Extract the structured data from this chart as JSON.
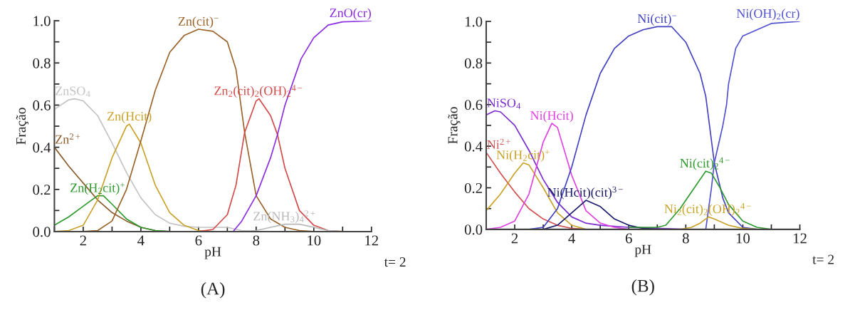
{
  "chart_data": [
    {
      "type": "line",
      "xlabel": "pH",
      "ylabel": "Fração",
      "xlim": [
        1,
        12
      ],
      "ylim": [
        0,
        1.0
      ],
      "xticks": [
        {
          "value": 1,
          "label": null
        },
        2,
        {
          "value": 3,
          "label": null
        },
        4,
        {
          "value": 5,
          "label": null
        },
        6,
        {
          "value": 7,
          "label": null
        },
        8,
        {
          "value": 9,
          "label": null
        },
        10,
        {
          "value": 11,
          "label": null
        },
        12
      ],
      "yticks": [
        {
          "value": 0,
          "label": "0.0"
        },
        {
          "value": 0.1,
          "label": null
        },
        0.2,
        {
          "value": 0.3,
          "label": null
        },
        0.4,
        {
          "value": 0.5,
          "label": null
        },
        0.6,
        {
          "value": 0.7,
          "label": null
        },
        0.8,
        {
          "value": 0.9,
          "label": null
        },
        {
          "value": 1.0,
          "label": "1.0"
        }
      ],
      "grid": false,
      "legend": false,
      "marker": "none",
      "line_style": "solid",
      "annotations": [
        "t= 2",
        "(A)"
      ],
      "series": [
        {
          "name": "ZnSO$_{4}$",
          "color": "#c4c4c4",
          "x": [
            1,
            1.5,
            1.7,
            2,
            2.5,
            3,
            3.5,
            4,
            4.5,
            5,
            5.5,
            6,
            7,
            7.5,
            8
          ],
          "values": [
            0.58,
            0.625,
            0.63,
            0.62,
            0.55,
            0.42,
            0.28,
            0.16,
            0.08,
            0.04,
            0.025,
            0.02,
            0.02,
            0.005,
            0
          ]
        },
        {
          "name": "Zn$^{2+}$",
          "color": "#8b5a2b",
          "x": [
            1,
            1.5,
            2,
            2.5,
            3,
            3.5,
            4,
            4.5,
            5
          ],
          "values": [
            0.4,
            0.31,
            0.23,
            0.15,
            0.09,
            0.05,
            0.02,
            0.005,
            0
          ]
        },
        {
          "name": "Zn(H$_{2}$cit)$^{+}$",
          "color": "#2e9a2e",
          "x": [
            1,
            1.5,
            2,
            2.5,
            2.7,
            3,
            3.5,
            4,
            4.5,
            5
          ],
          "values": [
            0.03,
            0.07,
            0.12,
            0.17,
            0.17,
            0.13,
            0.06,
            0.02,
            0.005,
            0
          ]
        },
        {
          "name": "Zn(Hcit)",
          "color": "#c9a227",
          "x": [
            1,
            1.5,
            2,
            2.5,
            3,
            3.5,
            3.6,
            4,
            4.5,
            5,
            5.5,
            6,
            6.5
          ],
          "values": [
            0,
            0.005,
            0.03,
            0.15,
            0.35,
            0.5,
            0.51,
            0.42,
            0.22,
            0.09,
            0.03,
            0.005,
            0
          ]
        },
        {
          "name": "Zn(cit)$^{−}$",
          "color": "#9a6228",
          "x": [
            1,
            2,
            2.5,
            3,
            3.5,
            4,
            4.5,
            5,
            5.5,
            6,
            6.5,
            7,
            7.3,
            7.6,
            8,
            8.5,
            9,
            9.5,
            10
          ],
          "values": [
            0,
            0,
            0.005,
            0.05,
            0.2,
            0.43,
            0.67,
            0.85,
            0.93,
            0.96,
            0.95,
            0.9,
            0.77,
            0.47,
            0.17,
            0.06,
            0.02,
            0.005,
            0
          ]
        },
        {
          "name": "Zn$_{2}$(cit)$_{2}$(OH)$_{2}$$^{4−}$",
          "color": "#d44848",
          "x": [
            6,
            6.5,
            7,
            7.3,
            7.6,
            8,
            8.1,
            8.5,
            8.74,
            9,
            9.5,
            10,
            10.5,
            11
          ],
          "values": [
            0,
            0.01,
            0.08,
            0.22,
            0.47,
            0.62,
            0.63,
            0.55,
            0.46,
            0.3,
            0.1,
            0.03,
            0.005,
            0
          ]
        },
        {
          "name": "ZnO(cr)",
          "color": "#8a2be2",
          "x": [
            7.2,
            7.5,
            8,
            8.5,
            8.74,
            9,
            9.56,
            10,
            10.5,
            11,
            12
          ],
          "values": [
            0,
            0.05,
            0.17,
            0.35,
            0.46,
            0.6,
            0.82,
            0.92,
            0.98,
            0.995,
            1.0
          ]
        },
        {
          "name": "Zn(NH$_{3}$)$_{4}$$^{2+}$",
          "color": "#b8b8b8",
          "x": [
            7.5,
            8,
            8.5,
            9,
            9.5,
            10,
            10.5,
            11
          ],
          "values": [
            0,
            0.005,
            0.02,
            0.035,
            0.035,
            0.02,
            0.005,
            0
          ]
        }
      ]
    },
    {
      "type": "line",
      "xlabel": "pH",
      "ylabel": "Fração",
      "xlim": [
        1,
        12
      ],
      "ylim": [
        0,
        1.0
      ],
      "xticks": [
        {
          "value": 1,
          "label": null
        },
        2,
        {
          "value": 3,
          "label": null
        },
        4,
        {
          "value": 5,
          "label": null
        },
        6,
        {
          "value": 7,
          "label": null
        },
        8,
        {
          "value": 9,
          "label": null
        },
        10,
        {
          "value": 11,
          "label": null
        },
        12
      ],
      "yticks": [
        {
          "value": 0,
          "label": "0.0"
        },
        {
          "value": 0.1,
          "label": null
        },
        0.2,
        {
          "value": 0.3,
          "label": null
        },
        0.4,
        {
          "value": 0.5,
          "label": null
        },
        0.6,
        {
          "value": 0.7,
          "label": null
        },
        0.8,
        {
          "value": 0.9,
          "label": null
        },
        {
          "value": 1.0,
          "label": "1.0"
        }
      ],
      "grid": false,
      "legend": false,
      "marker": "none",
      "line_style": "solid",
      "annotations": [
        "t= 2",
        "(B)"
      ],
      "series": [
        {
          "name": "NiSO$_{4}$",
          "color": "#7a2bd0",
          "x": [
            1,
            1.3,
            1.5,
            2,
            2.5,
            3,
            3.5,
            4,
            4.5,
            5,
            6,
            7,
            8
          ],
          "values": [
            0.55,
            0.57,
            0.565,
            0.5,
            0.38,
            0.24,
            0.13,
            0.06,
            0.03,
            0.02,
            0.01,
            0.005,
            0
          ]
        },
        {
          "name": "Ni$^{2+}$",
          "color": "#d05050",
          "x": [
            1,
            1.5,
            2,
            2.5,
            3,
            3.5,
            4,
            4.5
          ],
          "values": [
            0.37,
            0.27,
            0.18,
            0.1,
            0.05,
            0.02,
            0.005,
            0
          ]
        },
        {
          "name": "Ni(H$_{2}$cit)$^{+}$",
          "color": "#c9a227",
          "x": [
            1,
            1.5,
            2,
            2.3,
            2.5,
            3,
            3.5,
            4,
            4.5
          ],
          "values": [
            0.09,
            0.17,
            0.27,
            0.32,
            0.31,
            0.2,
            0.08,
            0.02,
            0
          ]
        },
        {
          "name": "Ni(Hcit)",
          "color": "#e040e0",
          "x": [
            1,
            1.5,
            2,
            2.5,
            3,
            3.3,
            3.5,
            4,
            4.5,
            5,
            5.5,
            6
          ],
          "values": [
            0,
            0.01,
            0.04,
            0.17,
            0.42,
            0.51,
            0.49,
            0.26,
            0.09,
            0.03,
            0.01,
            0
          ]
        },
        {
          "name": "Ni(Hcit)(cit)$^{3−}$",
          "color": "#1a1a6a",
          "x": [
            3,
            3.5,
            4,
            4.5,
            5,
            5.5,
            6,
            6.5,
            7
          ],
          "values": [
            0,
            0.02,
            0.08,
            0.14,
            0.11,
            0.05,
            0.02,
            0.005,
            0
          ]
        },
        {
          "name": "Ni(cit)$^{−}$",
          "color": "#4040c0",
          "x": [
            2.5,
            3,
            3.5,
            4,
            4.5,
            5,
            5.5,
            6,
            6.5,
            7,
            7.5,
            8,
            8.5,
            8.7,
            9,
            9.3,
            9.5,
            10,
            10.5
          ],
          "values": [
            0,
            0.01,
            0.1,
            0.3,
            0.55,
            0.75,
            0.87,
            0.93,
            0.96,
            0.975,
            0.975,
            0.9,
            0.75,
            0.64,
            0.32,
            0.15,
            0.08,
            0.01,
            0
          ]
        },
        {
          "name": "Ni(OH)$_{2}$(cr)",
          "color": "#5050d0",
          "x": [
            8.7,
            8.9,
            9,
            9.3,
            9.43,
            9.5,
            9.75,
            10,
            10.5,
            11,
            12
          ],
          "values": [
            0,
            0.2,
            0.32,
            0.5,
            0.6,
            0.7,
            0.87,
            0.93,
            0.96,
            0.99,
            1.0
          ]
        },
        {
          "name": "Ni(cit)$_{2}$$^{4−}$",
          "color": "#2e9a2e",
          "x": [
            6,
            7,
            7.3,
            7.8,
            8.3,
            8.7,
            8.9,
            9.2,
            9.5,
            10,
            10.5,
            11
          ],
          "values": [
            0.01,
            0.01,
            0.02,
            0.1,
            0.2,
            0.28,
            0.27,
            0.2,
            0.12,
            0.04,
            0.01,
            0
          ]
        },
        {
          "name": "Ni$_{2}$(cit)$_{2}$(OH)$_{2}$$^{4−}$",
          "color": "#c9a227",
          "x": [
            7.8,
            8.2,
            8.5,
            8.8,
            9,
            9.5,
            10,
            10.5
          ],
          "values": [
            0,
            0.01,
            0.03,
            0.06,
            0.05,
            0.02,
            0.005,
            0
          ]
        }
      ]
    }
  ]
}
